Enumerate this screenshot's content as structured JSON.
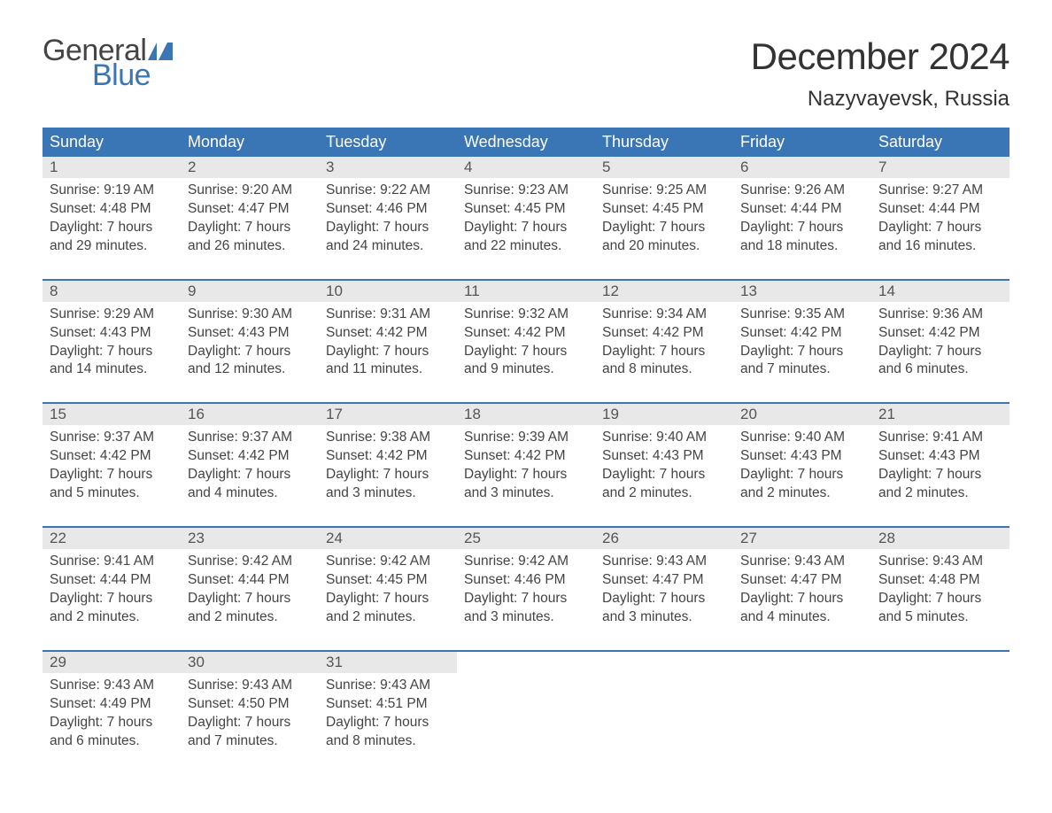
{
  "brand": {
    "word1": "General",
    "word2": "Blue",
    "flag_color": "#3a75b5",
    "word1_color": "#444444",
    "word2_color": "#3a75b5"
  },
  "title": "December 2024",
  "location": "Nazyvayevsk, Russia",
  "colors": {
    "header_bg": "#3a75b5",
    "header_text": "#ffffff",
    "daynum_bg": "#e8e8e8",
    "daynum_text": "#555555",
    "body_text": "#444444",
    "rule": "#3a75b5",
    "page_bg": "#ffffff"
  },
  "day_names": [
    "Sunday",
    "Monday",
    "Tuesday",
    "Wednesday",
    "Thursday",
    "Friday",
    "Saturday"
  ],
  "labels": {
    "sunrise_prefix": "Sunrise: ",
    "sunset_prefix": "Sunset: ",
    "daylight_prefix": "Daylight: "
  },
  "weeks": [
    [
      {
        "n": "1",
        "sunrise": "9:19 AM",
        "sunset": "4:48 PM",
        "daylight": "7 hours and 29 minutes."
      },
      {
        "n": "2",
        "sunrise": "9:20 AM",
        "sunset": "4:47 PM",
        "daylight": "7 hours and 26 minutes."
      },
      {
        "n": "3",
        "sunrise": "9:22 AM",
        "sunset": "4:46 PM",
        "daylight": "7 hours and 24 minutes."
      },
      {
        "n": "4",
        "sunrise": "9:23 AM",
        "sunset": "4:45 PM",
        "daylight": "7 hours and 22 minutes."
      },
      {
        "n": "5",
        "sunrise": "9:25 AM",
        "sunset": "4:45 PM",
        "daylight": "7 hours and 20 minutes."
      },
      {
        "n": "6",
        "sunrise": "9:26 AM",
        "sunset": "4:44 PM",
        "daylight": "7 hours and 18 minutes."
      },
      {
        "n": "7",
        "sunrise": "9:27 AM",
        "sunset": "4:44 PM",
        "daylight": "7 hours and 16 minutes."
      }
    ],
    [
      {
        "n": "8",
        "sunrise": "9:29 AM",
        "sunset": "4:43 PM",
        "daylight": "7 hours and 14 minutes."
      },
      {
        "n": "9",
        "sunrise": "9:30 AM",
        "sunset": "4:43 PM",
        "daylight": "7 hours and 12 minutes."
      },
      {
        "n": "10",
        "sunrise": "9:31 AM",
        "sunset": "4:42 PM",
        "daylight": "7 hours and 11 minutes."
      },
      {
        "n": "11",
        "sunrise": "9:32 AM",
        "sunset": "4:42 PM",
        "daylight": "7 hours and 9 minutes."
      },
      {
        "n": "12",
        "sunrise": "9:34 AM",
        "sunset": "4:42 PM",
        "daylight": "7 hours and 8 minutes."
      },
      {
        "n": "13",
        "sunrise": "9:35 AM",
        "sunset": "4:42 PM",
        "daylight": "7 hours and 7 minutes."
      },
      {
        "n": "14",
        "sunrise": "9:36 AM",
        "sunset": "4:42 PM",
        "daylight": "7 hours and 6 minutes."
      }
    ],
    [
      {
        "n": "15",
        "sunrise": "9:37 AM",
        "sunset": "4:42 PM",
        "daylight": "7 hours and 5 minutes."
      },
      {
        "n": "16",
        "sunrise": "9:37 AM",
        "sunset": "4:42 PM",
        "daylight": "7 hours and 4 minutes."
      },
      {
        "n": "17",
        "sunrise": "9:38 AM",
        "sunset": "4:42 PM",
        "daylight": "7 hours and 3 minutes."
      },
      {
        "n": "18",
        "sunrise": "9:39 AM",
        "sunset": "4:42 PM",
        "daylight": "7 hours and 3 minutes."
      },
      {
        "n": "19",
        "sunrise": "9:40 AM",
        "sunset": "4:43 PM",
        "daylight": "7 hours and 2 minutes."
      },
      {
        "n": "20",
        "sunrise": "9:40 AM",
        "sunset": "4:43 PM",
        "daylight": "7 hours and 2 minutes."
      },
      {
        "n": "21",
        "sunrise": "9:41 AM",
        "sunset": "4:43 PM",
        "daylight": "7 hours and 2 minutes."
      }
    ],
    [
      {
        "n": "22",
        "sunrise": "9:41 AM",
        "sunset": "4:44 PM",
        "daylight": "7 hours and 2 minutes."
      },
      {
        "n": "23",
        "sunrise": "9:42 AM",
        "sunset": "4:44 PM",
        "daylight": "7 hours and 2 minutes."
      },
      {
        "n": "24",
        "sunrise": "9:42 AM",
        "sunset": "4:45 PM",
        "daylight": "7 hours and 2 minutes."
      },
      {
        "n": "25",
        "sunrise": "9:42 AM",
        "sunset": "4:46 PM",
        "daylight": "7 hours and 3 minutes."
      },
      {
        "n": "26",
        "sunrise": "9:43 AM",
        "sunset": "4:47 PM",
        "daylight": "7 hours and 3 minutes."
      },
      {
        "n": "27",
        "sunrise": "9:43 AM",
        "sunset": "4:47 PM",
        "daylight": "7 hours and 4 minutes."
      },
      {
        "n": "28",
        "sunrise": "9:43 AM",
        "sunset": "4:48 PM",
        "daylight": "7 hours and 5 minutes."
      }
    ],
    [
      {
        "n": "29",
        "sunrise": "9:43 AM",
        "sunset": "4:49 PM",
        "daylight": "7 hours and 6 minutes."
      },
      {
        "n": "30",
        "sunrise": "9:43 AM",
        "sunset": "4:50 PM",
        "daylight": "7 hours and 7 minutes."
      },
      {
        "n": "31",
        "sunrise": "9:43 AM",
        "sunset": "4:51 PM",
        "daylight": "7 hours and 8 minutes."
      },
      null,
      null,
      null,
      null
    ]
  ]
}
